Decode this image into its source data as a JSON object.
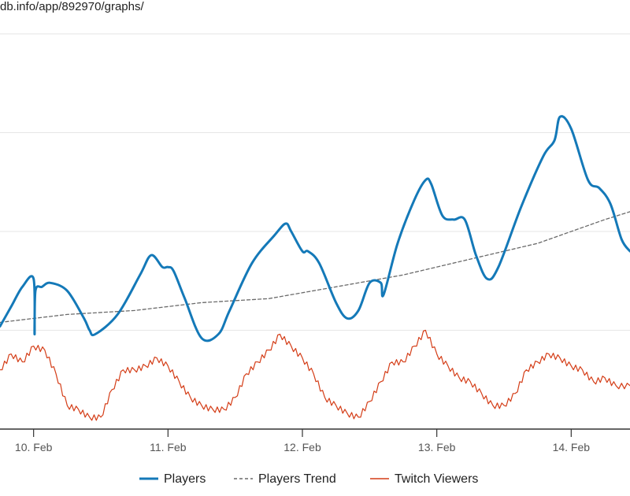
{
  "page": {
    "url_fragment": "db.info/app/892970/graphs/"
  },
  "colors": {
    "players": "#1479b8",
    "trend": "#6a6a6a",
    "twitch": "#d43d17",
    "grid": "#e6e6e6",
    "axis": "#333333"
  },
  "chart_data": {
    "type": "line",
    "title": "",
    "xlabel": "",
    "ylabel": "",
    "x_range": [
      "2021-02-09 18:00",
      "2021-02-14 10:30"
    ],
    "grid": true,
    "legend": "bottom",
    "x_ticks": [
      {
        "label": "10. Feb",
        "date": "2021-02-10 00:00"
      },
      {
        "label": "11. Feb",
        "date": "2021-02-11 00:00"
      },
      {
        "label": "12. Feb",
        "date": "2021-02-12 00:00"
      },
      {
        "label": "13. Feb",
        "date": "2021-02-13 00:00"
      },
      {
        "label": "14. Feb",
        "date": "2021-02-14 00:00"
      }
    ],
    "series": [
      {
        "name": "Players",
        "style": "solid",
        "x": [
          "2021-02-09 18:00",
          "2021-02-09 20:00",
          "2021-02-09 22:00",
          "2021-02-10 00:00",
          "2021-02-10 00:10",
          "2021-02-10 00:20",
          "2021-02-10 01:30",
          "2021-02-10 03:00",
          "2021-02-10 06:00",
          "2021-02-10 09:00",
          "2021-02-10 10:00",
          "2021-02-10 11:00",
          "2021-02-10 15:00",
          "2021-02-10 19:00",
          "2021-02-10 21:00",
          "2021-02-10 23:00",
          "2021-02-11 00:00",
          "2021-02-11 01:00",
          "2021-02-11 03:00",
          "2021-02-11 06:00",
          "2021-02-11 09:00",
          "2021-02-11 11:00",
          "2021-02-11 15:00",
          "2021-02-11 19:00",
          "2021-02-11 21:00",
          "2021-02-11 22:00",
          "2021-02-12 00:00",
          "2021-02-12 01:00",
          "2021-02-12 03:00",
          "2021-02-12 06:00",
          "2021-02-12 08:00",
          "2021-02-12 10:00",
          "2021-02-12 12:00",
          "2021-02-12 14:00",
          "2021-02-12 14:30",
          "2021-02-12 17:00",
          "2021-02-12 20:00",
          "2021-02-12 22:00",
          "2021-02-12 23:00",
          "2021-02-13 01:00",
          "2021-02-13 03:00",
          "2021-02-13 05:00",
          "2021-02-13 07:00",
          "2021-02-13 09:00",
          "2021-02-13 11:00",
          "2021-02-13 15:00",
          "2021-02-13 19:00",
          "2021-02-13 21:00",
          "2021-02-13 22:00",
          "2021-02-14 00:00",
          "2021-02-14 03:00",
          "2021-02-14 05:00",
          "2021-02-14 07:00",
          "2021-02-14 09:00",
          "2021-02-14 10:30"
        ],
        "y": [
          26,
          31,
          36,
          38,
          24,
          35,
          36,
          37,
          35,
          28,
          25,
          24,
          29,
          39,
          44,
          41,
          41,
          40,
          33,
          23,
          24,
          30,
          42,
          49,
          52,
          50,
          45,
          45,
          42,
          32,
          28,
          30,
          37,
          37,
          34,
          47,
          58,
          63,
          62,
          54,
          53,
          53,
          44,
          38,
          41,
          56,
          69,
          73,
          79,
          76,
          63,
          61,
          57,
          48,
          45
        ]
      },
      {
        "name": "Players Trend",
        "style": "dashed",
        "x": [
          "2021-02-09 18:00",
          "2021-02-10 06:00",
          "2021-02-10 18:00",
          "2021-02-11 06:00",
          "2021-02-11 18:00",
          "2021-02-12 06:00",
          "2021-02-12 18:00",
          "2021-02-13 06:00",
          "2021-02-13 18:00",
          "2021-02-14 06:00",
          "2021-02-14 10:30"
        ],
        "y": [
          27,
          29,
          30,
          32,
          33,
          36,
          39,
          43,
          47,
          53,
          55
        ]
      },
      {
        "name": "Twitch Viewers",
        "style": "solid-thin",
        "x": [
          "2021-02-09 18:00",
          "2021-02-09 20:00",
          "2021-02-09 22:00",
          "2021-02-10 00:00",
          "2021-02-10 02:00",
          "2021-02-10 04:00",
          "2021-02-10 06:00",
          "2021-02-10 08:00",
          "2021-02-10 10:00",
          "2021-02-10 12:00",
          "2021-02-10 14:00",
          "2021-02-10 16:00",
          "2021-02-10 18:00",
          "2021-02-10 20:00",
          "2021-02-10 22:00",
          "2021-02-11 00:00",
          "2021-02-11 02:00",
          "2021-02-11 04:00",
          "2021-02-11 06:00",
          "2021-02-11 08:00",
          "2021-02-11 10:00",
          "2021-02-11 12:00",
          "2021-02-11 14:00",
          "2021-02-11 16:00",
          "2021-02-11 18:00",
          "2021-02-11 20:00",
          "2021-02-11 22:00",
          "2021-02-12 00:00",
          "2021-02-12 02:00",
          "2021-02-12 04:00",
          "2021-02-12 06:00",
          "2021-02-12 08:00",
          "2021-02-12 10:00",
          "2021-02-12 12:00",
          "2021-02-12 14:00",
          "2021-02-12 16:00",
          "2021-02-12 18:00",
          "2021-02-12 20:00",
          "2021-02-12 22:00",
          "2021-02-13 00:00",
          "2021-02-13 02:00",
          "2021-02-13 04:00",
          "2021-02-13 06:00",
          "2021-02-13 08:00",
          "2021-02-13 10:00",
          "2021-02-13 12:00",
          "2021-02-13 14:00",
          "2021-02-13 16:00",
          "2021-02-13 18:00",
          "2021-02-13 20:00",
          "2021-02-13 22:00",
          "2021-02-14 00:00",
          "2021-02-14 02:00",
          "2021-02-14 04:00",
          "2021-02-14 06:00",
          "2021-02-14 08:00",
          "2021-02-14 10:30"
        ],
        "y": [
          15,
          19,
          17,
          21,
          20,
          14,
          6,
          5,
          3,
          3,
          10,
          15,
          15,
          16,
          18,
          16,
          12,
          8,
          6,
          5,
          5,
          8,
          14,
          17,
          20,
          24,
          21,
          18,
          14,
          8,
          6,
          4,
          3,
          7,
          12,
          17,
          17,
          21,
          25,
          19,
          16,
          13,
          12,
          9,
          6,
          6,
          9,
          15,
          17,
          19,
          18,
          16,
          15,
          12,
          13,
          11,
          11
        ]
      }
    ]
  }
}
